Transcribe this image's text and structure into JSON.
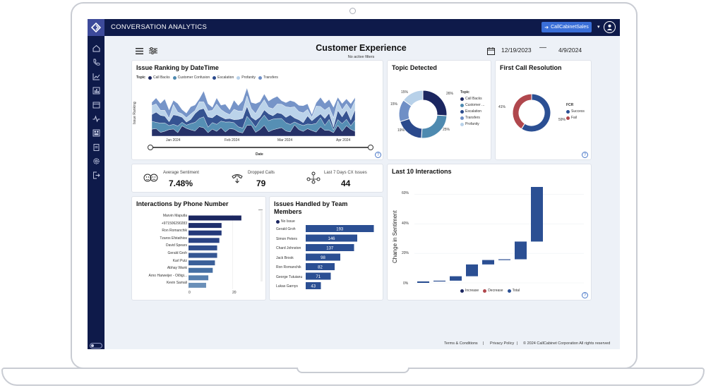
{
  "app": {
    "title": "CONVERSATION ANALYTICS",
    "account_button": "CallCabinetSales"
  },
  "page": {
    "title": "Customer Experience",
    "filters_text": "No active filters",
    "date_start": "12/19/2023",
    "date_sep": "—",
    "date_end": "4/9/2024"
  },
  "issue_ranking": {
    "title": "Issue Ranking by DateTime",
    "legend_title": "Topic",
    "legend": [
      "Call Backs",
      "Customer Confusion",
      "Escalation",
      "Profanity",
      "Transfers"
    ],
    "ylabel": "Issue Ranking",
    "xlabel": "Date",
    "ticks": [
      "Jan 2024",
      "Feb 2024",
      "Mar 2024",
      "Apr 2024"
    ]
  },
  "topic_detected": {
    "title": "Topic Detected",
    "legend_title": "Topic",
    "legend": [
      "Call Backs",
      "Customer ...",
      "Escalation",
      "Transfers",
      "Profanity"
    ],
    "labels": [
      "26%",
      "25%",
      "19%",
      "15%",
      "15%"
    ]
  },
  "fcr": {
    "title": "First Call Resolution",
    "legend_title": "FCR",
    "legend": [
      "Success",
      "Fail"
    ],
    "labels": [
      "41%",
      "59%"
    ]
  },
  "kpis": [
    {
      "label": "Average Sentiment",
      "value": "7.48%"
    },
    {
      "label": "Dropped Calls",
      "value": "79"
    },
    {
      "label": "Last 7 Days CX Issues",
      "value": "44"
    }
  ],
  "last10": {
    "title": "Last 10 Interactions",
    "ylabel": "Change in Sentiment",
    "ticks": [
      "60%",
      "40%",
      "20%",
      "0%"
    ],
    "legend": [
      "Increase",
      "Decrease",
      "Total"
    ]
  },
  "phone": {
    "title": "Interactions by Phone Number",
    "names": [
      "Marvin Maputla",
      "+971506290283",
      "Ron Romanchik",
      "Tzaros Efstathios",
      "David Spears",
      "Gerald Groh",
      "Karl Putz",
      "Abhay Wank",
      "Arno Harweijer - Olðigi...",
      "Kevin Samali"
    ],
    "axis": [
      "0",
      "20"
    ]
  },
  "team": {
    "title": "Issues Handled by Team Members",
    "legend": "No Issue",
    "names": [
      "Gerald Groh",
      "Simon Peters",
      "Chard Johnston",
      "Jack Brook",
      "Ron Romanchik",
      "George Tutuianu",
      "Lukas Garnys"
    ],
    "values": [
      "193",
      "146",
      "137",
      "98",
      "82",
      "71",
      "43"
    ]
  },
  "footer": {
    "terms": "Terms & Conditions",
    "sep": "|",
    "privacy": "Privacy Policy",
    "copyright": "© 2024 CallCabinet Corporation All rights reserved"
  },
  "chart_data": [
    {
      "type": "pie",
      "title": "Topic Detected",
      "categories": [
        "Call Backs",
        "Customer Confusion",
        "Escalation",
        "Transfers",
        "Profanity"
      ],
      "values": [
        26,
        25,
        19,
        15,
        15
      ],
      "colors": [
        "#1b2660",
        "#4e8ab0",
        "#2b4a8c",
        "#6f8fc6",
        "#b8d1e9"
      ]
    },
    {
      "type": "pie",
      "title": "First Call Resolution",
      "categories": [
        "Success",
        "Fail"
      ],
      "values": [
        59,
        41
      ],
      "colors": [
        "#2b4f93",
        "#b0474d"
      ]
    },
    {
      "type": "bar",
      "title": "Interactions by Phone Number",
      "categories": [
        "Marvin Maputla",
        "+971506290283",
        "Ron Romanchik",
        "Tzaros Efstathios",
        "David Spears",
        "Gerald Groh",
        "Karl Putz",
        "Abhay Wank",
        "Arno Harweijer - Olðigi...",
        "Kevin Samali"
      ],
      "values": [
        24,
        15,
        15,
        14,
        13,
        13,
        12,
        11,
        9,
        8
      ],
      "xlim": [
        0,
        25
      ]
    },
    {
      "type": "bar",
      "title": "Issues Handled by Team Members",
      "categories": [
        "Gerald Groh",
        "Simon Peters",
        "Chard Johnston",
        "Jack Brook",
        "Ron Romanchik",
        "George Tutuianu",
        "Lukas Garnys"
      ],
      "values": [
        193,
        146,
        137,
        98,
        82,
        71,
        43
      ]
    },
    {
      "type": "bar",
      "title": "Last 10 Interactions",
      "ylabel": "Change in Sentiment",
      "series": [
        {
          "name": "Increase",
          "values": [
            1,
            0.5,
            3,
            8,
            3,
            0.5,
            12,
            55,
            0,
            0
          ]
        },
        {
          "name": "Decrease",
          "values": [
            0,
            0,
            0,
            0,
            0,
            0,
            0,
            0,
            7,
            7
          ]
        }
      ],
      "ylim": [
        0,
        65
      ]
    }
  ]
}
